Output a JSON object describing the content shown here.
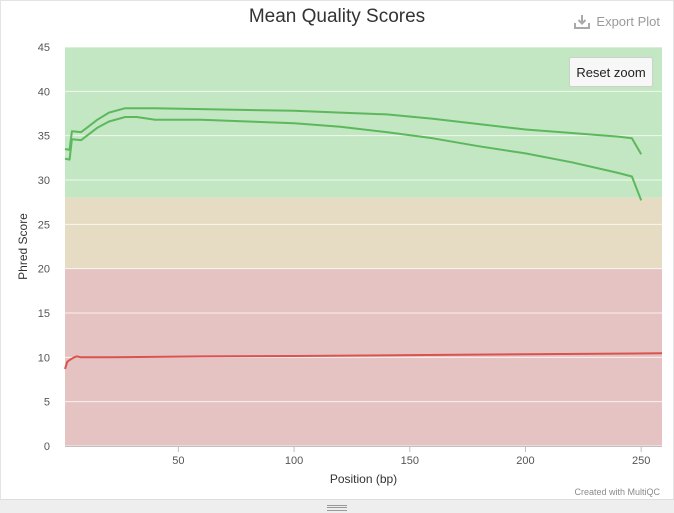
{
  "header": {
    "title": "Mean Quality Scores",
    "export_label": "Export Plot",
    "reset_label": "Reset zoom"
  },
  "footer": {
    "credit": "Created with MultiQC"
  },
  "chart_data": {
    "type": "line",
    "title": "Mean Quality Scores",
    "xlabel": "Position (bp)",
    "ylabel": "Phred Score",
    "xlim": [
      1,
      259
    ],
    "ylim": [
      0,
      45
    ],
    "xticks": [
      50,
      100,
      150,
      200,
      250
    ],
    "yticks": [
      0,
      5,
      10,
      15,
      20,
      25,
      30,
      35,
      40,
      45
    ],
    "bands": [
      {
        "from": 28,
        "to": 45,
        "color": "#c3e6c3"
      },
      {
        "from": 20,
        "to": 28,
        "color": "#e6dcc3"
      },
      {
        "from": 0,
        "to": 20,
        "color": "#e6c3c3"
      }
    ],
    "grid": true,
    "legend": "none",
    "series": [
      {
        "color": "#5cb85c",
        "points": [
          [
            1,
            33.5
          ],
          [
            3,
            33.4
          ],
          [
            4,
            35.5
          ],
          [
            8,
            35.4
          ],
          [
            15,
            36.8
          ],
          [
            20,
            37.6
          ],
          [
            27,
            38.1
          ],
          [
            40,
            38.1
          ],
          [
            60,
            38.0
          ],
          [
            80,
            37.9
          ],
          [
            100,
            37.8
          ],
          [
            120,
            37.6
          ],
          [
            140,
            37.4
          ],
          [
            160,
            36.9
          ],
          [
            180,
            36.3
          ],
          [
            200,
            35.7
          ],
          [
            220,
            35.3
          ],
          [
            240,
            34.9
          ],
          [
            246,
            34.7
          ],
          [
            250,
            32.9
          ]
        ]
      },
      {
        "color": "#5cb85c",
        "points": [
          [
            1,
            32.4
          ],
          [
            3,
            32.3
          ],
          [
            4,
            34.6
          ],
          [
            8,
            34.5
          ],
          [
            15,
            35.9
          ],
          [
            20,
            36.6
          ],
          [
            27,
            37.1
          ],
          [
            32,
            37.1
          ],
          [
            40,
            36.8
          ],
          [
            60,
            36.8
          ],
          [
            80,
            36.6
          ],
          [
            100,
            36.4
          ],
          [
            120,
            36.0
          ],
          [
            140,
            35.4
          ],
          [
            160,
            34.7
          ],
          [
            180,
            33.8
          ],
          [
            200,
            33.0
          ],
          [
            220,
            32.0
          ],
          [
            240,
            30.8
          ],
          [
            246,
            30.4
          ],
          [
            250,
            27.7
          ]
        ]
      },
      {
        "color": "#d9534f",
        "points": [
          [
            1,
            8.7
          ],
          [
            2,
            9.5
          ],
          [
            3,
            9.7
          ],
          [
            5,
            10.0
          ],
          [
            6,
            10.1
          ],
          [
            8,
            10.0
          ],
          [
            20,
            10.0
          ],
          [
            60,
            10.1
          ],
          [
            100,
            10.15
          ],
          [
            150,
            10.25
          ],
          [
            200,
            10.35
          ],
          [
            259,
            10.45
          ]
        ]
      }
    ]
  }
}
